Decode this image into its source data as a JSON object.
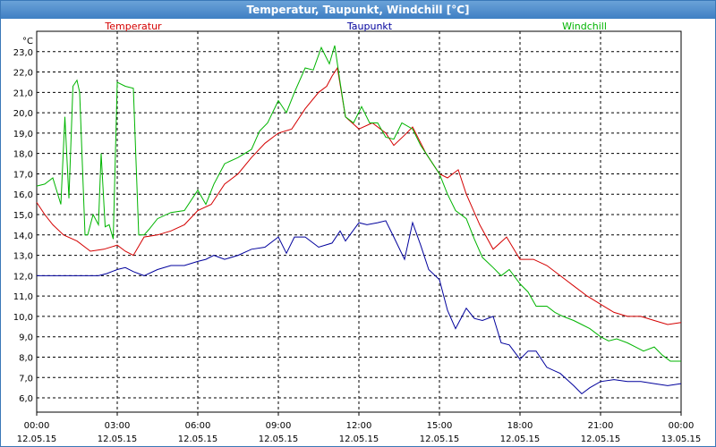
{
  "window": {
    "title": "Temperatur, Taupunkt, Windchill [°C]"
  },
  "chart_data": {
    "type": "line",
    "title": "Temperatur, Taupunkt, Windchill [°C]",
    "ylabel": "°C",
    "ylim": [
      5.3,
      24.0
    ],
    "xlim_hours": [
      0,
      24
    ],
    "y_ticks": [
      "6,0",
      "7,0",
      "8,0",
      "9,0",
      "10,0",
      "11,0",
      "12,0",
      "13,0",
      "14,0",
      "15,0",
      "16,0",
      "17,0",
      "18,0",
      "19,0",
      "20,0",
      "21,0",
      "22,0",
      "23,0"
    ],
    "x_ticks": [
      {
        "time": "00:00",
        "date": "12.05.15"
      },
      {
        "time": "03:00",
        "date": "12.05.15"
      },
      {
        "time": "06:00",
        "date": "12.05.15"
      },
      {
        "time": "09:00",
        "date": "12.05.15"
      },
      {
        "time": "12:00",
        "date": "12.05.15"
      },
      {
        "time": "15:00",
        "date": "12.05.15"
      },
      {
        "time": "18:00",
        "date": "12.05.15"
      },
      {
        "time": "21:00",
        "date": "12.05.15"
      },
      {
        "time": "00:00",
        "date": "13.05.15"
      }
    ],
    "grid": true,
    "series": [
      {
        "name": "Temperatur",
        "color": "#d40000",
        "x": [
          0,
          0.3,
          0.6,
          1.0,
          1.5,
          2.0,
          2.5,
          3.0,
          3.3,
          3.6,
          4.0,
          4.5,
          5.0,
          5.5,
          6.0,
          6.5,
          7.0,
          7.5,
          8.0,
          8.5,
          9.0,
          9.5,
          10.0,
          10.5,
          10.8,
          11.0,
          11.2,
          11.5,
          12.0,
          12.5,
          13.0,
          13.3,
          13.7,
          14.0,
          14.5,
          15.0,
          15.3,
          15.7,
          16.0,
          16.5,
          17.0,
          17.5,
          18.0,
          18.5,
          19.0,
          19.5,
          20.0,
          20.5,
          21.0,
          21.5,
          22.0,
          22.5,
          23.0,
          23.5,
          24.0
        ],
        "values": [
          15.6,
          15.0,
          14.5,
          14.0,
          13.7,
          13.2,
          13.3,
          13.5,
          13.2,
          13.0,
          13.9,
          14.0,
          14.2,
          14.5,
          15.2,
          15.5,
          16.5,
          17.0,
          17.8,
          18.5,
          19.0,
          19.2,
          20.2,
          21.0,
          21.3,
          21.8,
          22.2,
          19.8,
          19.2,
          19.5,
          19.0,
          18.4,
          18.9,
          19.3,
          18.0,
          17.0,
          16.8,
          17.2,
          16.0,
          14.5,
          13.3,
          13.9,
          12.8,
          12.8,
          12.5,
          12.0,
          11.5,
          11.0,
          10.6,
          10.2,
          10.0,
          10.0,
          9.8,
          9.6,
          9.7
        ]
      },
      {
        "name": "Taupunkt",
        "color": "#00009c",
        "x": [
          0,
          0.5,
          1.0,
          1.5,
          2.0,
          2.3,
          2.6,
          3.0,
          3.3,
          3.6,
          4.0,
          4.5,
          5.0,
          5.5,
          6.0,
          6.3,
          6.6,
          7.0,
          7.5,
          8.0,
          8.5,
          9.0,
          9.3,
          9.6,
          10.0,
          10.5,
          11.0,
          11.3,
          11.5,
          12.0,
          12.3,
          12.7,
          13.0,
          13.3,
          13.7,
          14.0,
          14.3,
          14.6,
          15.0,
          15.3,
          15.6,
          16.0,
          16.3,
          16.6,
          17.0,
          17.3,
          17.6,
          18.0,
          18.3,
          18.6,
          19.0,
          19.5,
          20.0,
          20.3,
          20.6,
          21.0,
          21.5,
          22.0,
          22.5,
          23.0,
          23.5,
          24.0
        ],
        "values": [
          12.0,
          12.0,
          12.0,
          12.0,
          12.0,
          12.0,
          12.1,
          12.3,
          12.4,
          12.2,
          12.0,
          12.3,
          12.5,
          12.5,
          12.7,
          12.8,
          13.0,
          12.8,
          13.0,
          13.3,
          13.4,
          13.9,
          13.1,
          13.9,
          13.9,
          13.4,
          13.6,
          14.2,
          13.7,
          14.6,
          14.5,
          14.6,
          14.7,
          13.9,
          12.8,
          14.6,
          13.5,
          12.3,
          11.8,
          10.3,
          9.4,
          10.4,
          9.9,
          9.8,
          10.0,
          8.7,
          8.6,
          7.9,
          8.3,
          8.3,
          7.5,
          7.2,
          6.6,
          6.2,
          6.5,
          6.8,
          6.9,
          6.8,
          6.8,
          6.7,
          6.6,
          6.7
        ]
      },
      {
        "name": "Windchill",
        "color": "#00b400",
        "x": [
          0,
          0.3,
          0.6,
          0.9,
          1.05,
          1.2,
          1.35,
          1.5,
          1.6,
          1.8,
          1.9,
          2.1,
          2.3,
          2.4,
          2.55,
          2.7,
          2.85,
          3.0,
          3.3,
          3.6,
          3.8,
          4.0,
          4.2,
          4.5,
          5.0,
          5.5,
          6.0,
          6.3,
          6.6,
          7.0,
          7.5,
          8.0,
          8.3,
          8.6,
          9.0,
          9.3,
          9.6,
          10.0,
          10.3,
          10.6,
          10.9,
          11.1,
          11.3,
          11.5,
          11.8,
          12.1,
          12.4,
          12.7,
          13.0,
          13.3,
          13.6,
          14.0,
          14.3,
          14.6,
          15.0,
          15.3,
          15.6,
          16.0,
          16.3,
          16.6,
          17.0,
          17.3,
          17.6,
          18.0,
          18.3,
          18.6,
          19.0,
          19.3,
          19.6,
          20.0,
          20.3,
          20.6,
          21.0,
          21.3,
          21.6,
          22.0,
          22.3,
          22.6,
          23.0,
          23.3,
          23.6,
          24.0
        ],
        "values": [
          16.4,
          16.5,
          16.8,
          15.5,
          19.8,
          15.8,
          21.3,
          21.6,
          21.0,
          14.0,
          14.0,
          15.0,
          14.5,
          18.0,
          14.4,
          14.5,
          13.8,
          21.5,
          21.3,
          21.2,
          14.0,
          14.0,
          14.3,
          14.8,
          15.1,
          15.2,
          16.2,
          15.5,
          16.5,
          17.5,
          17.8,
          18.2,
          19.1,
          19.5,
          20.6,
          20.0,
          21.0,
          22.2,
          22.1,
          23.2,
          22.4,
          23.3,
          21.5,
          19.8,
          19.5,
          20.3,
          19.5,
          19.5,
          18.8,
          18.7,
          19.5,
          19.2,
          18.4,
          17.8,
          17.0,
          16.0,
          15.2,
          14.8,
          13.8,
          12.9,
          12.4,
          12.0,
          12.3,
          11.6,
          11.2,
          10.5,
          10.5,
          10.2,
          10.0,
          9.8,
          9.6,
          9.4,
          9.0,
          8.8,
          8.9,
          8.7,
          8.5,
          8.3,
          8.5,
          8.1,
          7.8,
          7.8
        ]
      }
    ]
  }
}
